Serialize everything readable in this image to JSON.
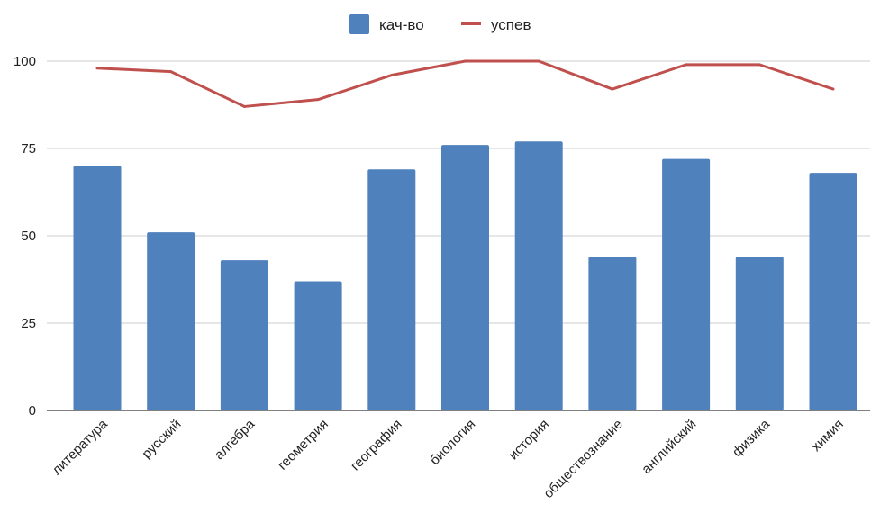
{
  "chart_data": {
    "type": "bar",
    "categories": [
      "литература",
      "русский",
      "алгебра",
      "геометрия",
      "география",
      "биология",
      "история",
      "обществознание",
      "английский",
      "физика",
      "химия"
    ],
    "series": [
      {
        "name": "кач-во",
        "type": "bar",
        "color": "#4f81bd",
        "values": [
          70,
          51,
          43,
          37,
          69,
          76,
          77,
          44,
          72,
          44,
          68
        ]
      },
      {
        "name": "успев",
        "type": "line",
        "color": "#c0504d",
        "values": [
          98,
          97,
          87,
          89,
          96,
          100,
          100,
          92,
          99,
          99,
          92
        ]
      }
    ],
    "yticks": [
      "0",
      "25",
      "50",
      "75",
      "100"
    ],
    "ylim": [
      0,
      100
    ],
    "grid": true,
    "legend_position": "top-center"
  }
}
